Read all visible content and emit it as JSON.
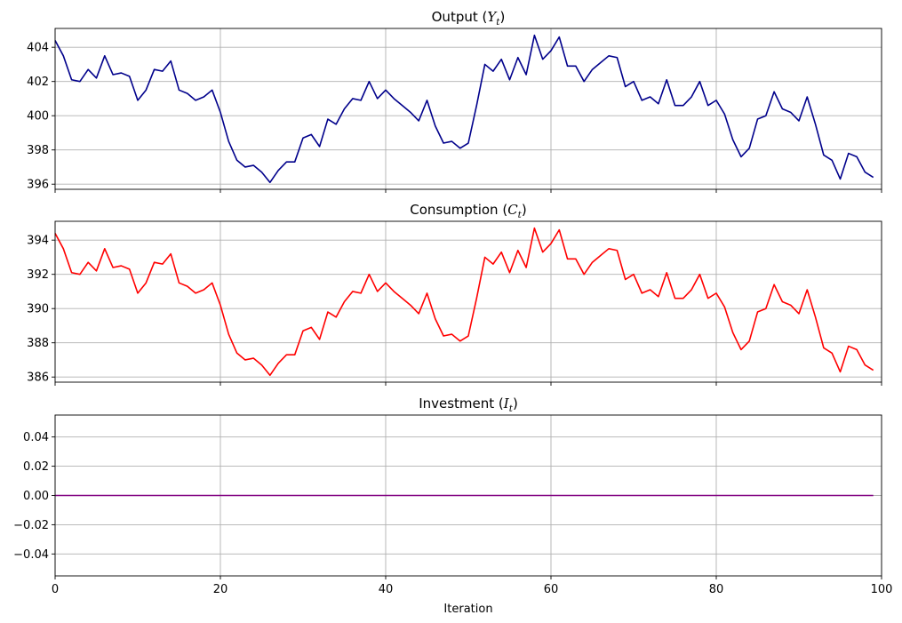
{
  "chart_data": [
    {
      "type": "line",
      "title": "Output (Y_t)",
      "title_main": "Output (",
      "title_var": "Y",
      "title_sub": "t",
      "title_end": ")",
      "ylim": [
        395.7,
        405.1
      ],
      "yticks": [
        396,
        398,
        400,
        402,
        404
      ],
      "ytick_labels": [
        "396",
        "398",
        "400",
        "402",
        "404"
      ],
      "xlim": [
        0,
        100
      ],
      "xticks": [
        0,
        20,
        40,
        60,
        80,
        100
      ],
      "show_xtick_labels": false,
      "grid": true,
      "color": "#00008b",
      "x": [
        0,
        1,
        2,
        3,
        4,
        5,
        6,
        7,
        8,
        9,
        10,
        11,
        12,
        13,
        14,
        15,
        16,
        17,
        18,
        19,
        20,
        21,
        22,
        23,
        24,
        25,
        26,
        27,
        28,
        29,
        30,
        31,
        32,
        33,
        34,
        35,
        36,
        37,
        38,
        39,
        40,
        41,
        42,
        43,
        44,
        45,
        46,
        47,
        48,
        49,
        50,
        51,
        52,
        53,
        54,
        55,
        56,
        57,
        58,
        59,
        60,
        61,
        62,
        63,
        64,
        65,
        66,
        67,
        68,
        69,
        70,
        71,
        72,
        73,
        74,
        75,
        76,
        77,
        78,
        79,
        80,
        81,
        82,
        83,
        84,
        85,
        86,
        87,
        88,
        89,
        90,
        91,
        92,
        93,
        94,
        95,
        96,
        97,
        98,
        99
      ],
      "y": [
        404.4,
        403.5,
        402.1,
        402.0,
        402.7,
        402.2,
        403.5,
        402.4,
        402.5,
        402.3,
        400.9,
        401.5,
        402.7,
        402.6,
        403.2,
        401.5,
        401.3,
        400.9,
        401.1,
        401.5,
        400.2,
        398.5,
        397.4,
        397.0,
        397.1,
        396.7,
        396.1,
        396.8,
        397.3,
        397.3,
        398.7,
        398.9,
        398.2,
        399.8,
        399.5,
        400.4,
        401.0,
        400.9,
        402.0,
        401.0,
        401.5,
        401.0,
        400.6,
        400.2,
        399.7,
        400.9,
        399.4,
        398.4,
        398.5,
        398.1,
        398.4,
        400.6,
        403.0,
        402.6,
        403.3,
        402.1,
        403.4,
        402.4,
        404.7,
        403.3,
        403.8,
        404.6,
        402.9,
        402.9,
        402.0,
        402.7,
        403.1,
        403.5,
        403.4,
        401.7,
        402.0,
        400.9,
        401.1,
        400.7,
        402.1,
        400.6,
        400.6,
        401.1,
        402.0,
        400.6,
        400.9,
        400.1,
        398.6,
        397.6,
        398.1,
        399.8,
        400.0,
        401.4,
        400.4,
        400.2,
        399.7,
        401.1,
        399.5,
        397.7,
        397.4,
        396.3,
        397.8,
        397.6,
        396.7,
        396.4
      ]
    },
    {
      "type": "line",
      "title": "Consumption (C_t)",
      "title_main": "Consumption (",
      "title_var": "C",
      "title_sub": "t",
      "title_end": ")",
      "ylim": [
        385.7,
        395.1
      ],
      "yticks": [
        386,
        388,
        390,
        392,
        394
      ],
      "ytick_labels": [
        "386",
        "388",
        "390",
        "392",
        "394"
      ],
      "xlim": [
        0,
        100
      ],
      "xticks": [
        0,
        20,
        40,
        60,
        80,
        100
      ],
      "show_xtick_labels": false,
      "grid": true,
      "color": "#ff0000",
      "x": [
        0,
        1,
        2,
        3,
        4,
        5,
        6,
        7,
        8,
        9,
        10,
        11,
        12,
        13,
        14,
        15,
        16,
        17,
        18,
        19,
        20,
        21,
        22,
        23,
        24,
        25,
        26,
        27,
        28,
        29,
        30,
        31,
        32,
        33,
        34,
        35,
        36,
        37,
        38,
        39,
        40,
        41,
        42,
        43,
        44,
        45,
        46,
        47,
        48,
        49,
        50,
        51,
        52,
        53,
        54,
        55,
        56,
        57,
        58,
        59,
        60,
        61,
        62,
        63,
        64,
        65,
        66,
        67,
        68,
        69,
        70,
        71,
        72,
        73,
        74,
        75,
        76,
        77,
        78,
        79,
        80,
        81,
        82,
        83,
        84,
        85,
        86,
        87,
        88,
        89,
        90,
        91,
        92,
        93,
        94,
        95,
        96,
        97,
        98,
        99
      ],
      "y": [
        394.4,
        393.5,
        392.1,
        392.0,
        392.7,
        392.2,
        393.5,
        392.4,
        392.5,
        392.3,
        390.9,
        391.5,
        392.7,
        392.6,
        393.2,
        391.5,
        391.3,
        390.9,
        391.1,
        391.5,
        390.2,
        388.5,
        387.4,
        387.0,
        387.1,
        386.7,
        386.1,
        386.8,
        387.3,
        387.3,
        388.7,
        388.9,
        388.2,
        389.8,
        389.5,
        390.4,
        391.0,
        390.9,
        392.0,
        391.0,
        391.5,
        391.0,
        390.6,
        390.2,
        389.7,
        390.9,
        389.4,
        388.4,
        388.5,
        388.1,
        388.4,
        390.6,
        393.0,
        392.6,
        393.3,
        392.1,
        393.4,
        392.4,
        394.7,
        393.3,
        393.8,
        394.6,
        392.9,
        392.9,
        392.0,
        392.7,
        393.1,
        393.5,
        393.4,
        391.7,
        392.0,
        390.9,
        391.1,
        390.7,
        392.1,
        390.6,
        390.6,
        391.1,
        392.0,
        390.6,
        390.9,
        390.1,
        388.6,
        387.6,
        388.1,
        389.8,
        390.0,
        391.4,
        390.4,
        390.2,
        389.7,
        391.1,
        389.5,
        387.7,
        387.4,
        386.3,
        387.8,
        387.6,
        386.7,
        386.4
      ]
    },
    {
      "type": "line",
      "title": "Investment (I_t)",
      "title_main": "Investment (",
      "title_var": "I",
      "title_sub": "t",
      "title_end": ")",
      "ylim": [
        -0.055,
        0.055
      ],
      "yticks": [
        -0.04,
        -0.02,
        0.0,
        0.02,
        0.04
      ],
      "ytick_labels": [
        "−0.04",
        "−0.02",
        "0.00",
        "0.02",
        "0.04"
      ],
      "xlim": [
        0,
        100
      ],
      "xticks": [
        0,
        20,
        40,
        60,
        80,
        100
      ],
      "xtick_labels": [
        "0",
        "20",
        "40",
        "60",
        "80",
        "100"
      ],
      "show_xtick_labels": true,
      "xlabel": "Iteration",
      "grid": true,
      "color": "#800080",
      "x": [
        0,
        99
      ],
      "y": [
        0.0,
        0.0
      ]
    }
  ]
}
